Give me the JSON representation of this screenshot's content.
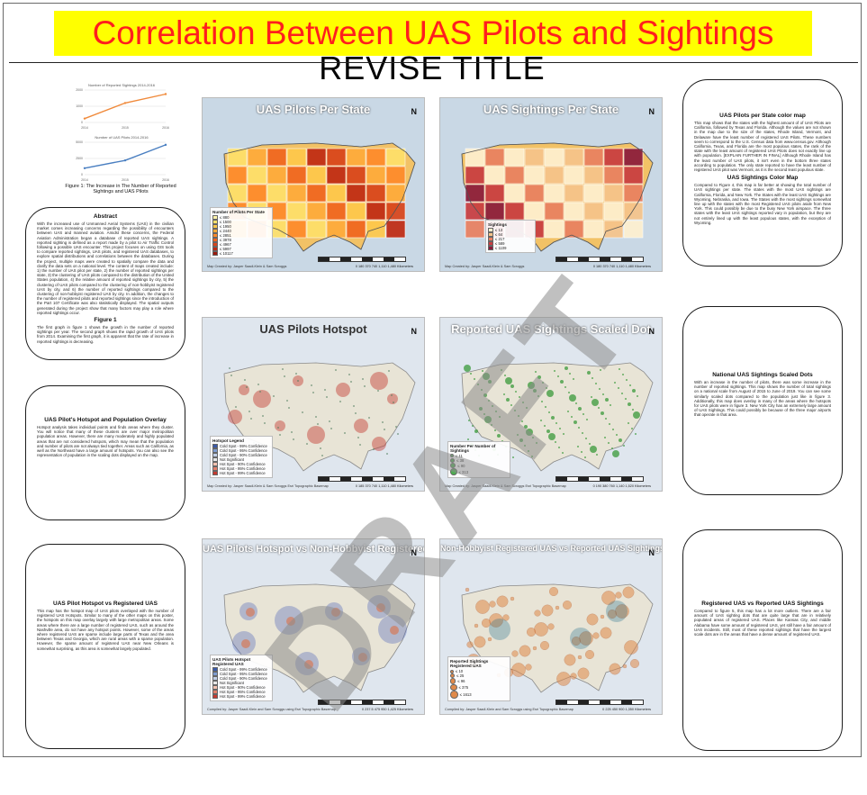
{
  "poster": {
    "title": "Correlation Between UAS Pilots and Sightings",
    "subtitle": "REVISE TITLE",
    "watermark": "DRAFT",
    "colors": {
      "title_bg": "#ffff00",
      "title_text": "#ff1e1e",
      "watermark": "#8c8c8c"
    }
  },
  "figure1": {
    "chart1_title": "Number of Reported Sightings 2014-2016",
    "chart2_title": "Number of UAS Pilots 2014-2016",
    "caption": "Figure 1: The Increase in The Number of Reported Sightings and UAS Pilots",
    "chart_data": [
      {
        "type": "line",
        "title": "Number of Reported Sightings 2014-2016",
        "categories": [
          "2014",
          "2015",
          "2016"
        ],
        "values": [
          240,
          1200,
          1750
        ],
        "ylim": [
          0,
          2000
        ],
        "color": "#f08a3b"
      },
      {
        "type": "line",
        "title": "Number of UAS Pilots 2014-2016",
        "categories": [
          "2014",
          "2015",
          "2016"
        ],
        "values": [
          1000,
          2200,
          4600
        ],
        "ylim": [
          0,
          5000
        ],
        "color": "#4a7fc1"
      }
    ]
  },
  "panels": {
    "abstract": {
      "heading": "Abstract",
      "body": "With the increased use of Unmanned Aerial Systems (UAS) in the civilian market comes increasing concerns regarding the possibility of encounters between UAS and manned aviation. Amidst these concerns, the Federal Aviation Administration began a database of reported UAS sightings. A reported sighting is defined as a report made by a pilot to Air Traffic Control following a possible UAS encounter. This project focuses on using GIS tools to compare reported sightings, UAS pilots, and registered UAS databases, to explore spatial distributions and correlations between the databases. During the project, multiple maps were created to spatially compare the data and clarify the data sets on a national level. The content of maps created include: 1) the number of UAS pilot per state, 2) the number of reported sightings per state, 3) the clustering of UAS pilots compared to the distribution of the United States population, 4) the relative amount of reported sightings by city, 5) the clustering of UAS pilots compared to the clustering of non-hobbyist registered UAS by city, and 6) the number of reported sightings compared to the clustering of non-hobbyist registered UAS by city. In addition, the changes to the number of registered pilots and reported sightings since the introduction of the Part 107 Certificate was also statistically displayed. The spatial outputs generated during the project show that many factors may play a role where reported sightings occur.",
      "sub_heading": "Figure 1",
      "sub_body": "The first graph in figure 1 shows the growth in the number of reported sightings per year. The second graph shows the rapid growth of UAS pilots from 2014. Examining the first graph, it is apparent that the rate of increase in reported sightings is decreasing."
    },
    "hotspot_overlay": {
      "heading": "UAS Pilot's Hotspot and Population Overlay",
      "body": "Hotspot analysis takes individual points and finds areas where they cluster. You will notice that many of these clusters are over major metropolitan population areas. However, there are many moderately and highly populated areas that are not considered hotspots, which may mean that the population and number of pilots are not always tied together. Areas such as California, as well as the Northeast have a large amount of hotspots. You can also see the representation of population in the scaling dots displayed on the map."
    },
    "pilot_vs_registered": {
      "heading": "UAS Pilot Hotspot vs Registered UAS",
      "body": "This map has the hotspot map of UAS pilots overlayed with the number of registered UAS Hotspots. Similar to many of the other maps on this poster, the hotspots on this map overlay largely with large metropolitan areas. Some areas where there are a large number of registered UAS, such as around the Nashville area, do not have any hotspot points. However, some of the areas where registered UAS are sparse include large parts of Texas and the area between Texas and Georgia, which are rural areas with a sparse population. However, the sparse amount of registered UAS near New Orleans is somewhat surprising, as this area is somewhat largely populated."
    },
    "pilots_color_map": {
      "heading": "UAS Pilots per State color map",
      "body": "This map shows that the states with the highest amount of of UAS Pilots are California, followed by Texas and Florida. Although the values are not shown in the map due to the size of the states, Rhode Island, Vermont, and Delaware have the least number of registered UAS Pilots. These numbers seem to correspond to the U.S. Census data from www.census.gov. Although California, Texas, and Florida are the most populous states, the rank of the state with the least amount of registered UAS Pilots does not exactly line up with population. [EXPLAIN FURTHER IN FINAL] Although Rhode Island has the least number of UAS pilots, it isn't even in the bottom three states according to population. The only state reported to have the least number of registered UAS pilot was Vermont, as it is the second least populous state.",
      "sub_heading": "UAS Sightings Color Map",
      "sub_body": "Compared to Figure 4, this map is far better at showing the total number of UAS sightings per state. The states with the most UAS sightings are California, Florida, and New York. The States with the least UAS Sightings are Wyoming, Nebraska, and Iowa. The States with the most sightings somewhat line up with the states with the most Registered UAS pilots aside from New York. This could possibly be due to the busy New York airspace. The three states with the least UAS sightings reported vary in population, but they are not entirely lined up with the least populous states, with the exception of Wyoming."
    },
    "scaled_dots": {
      "heading": "National UAS Sightings Scaled Dots",
      "body": "With an increase in the number of pilots, there was some increase in the number of reported sightings. This map shows the number of total sightings on a national scale from August of 2015 to June of 2019. You can see some similarly scaled dots compared to the population just like in figure 3. Additionally, this map does overlay in many of the areas where the hotspots for UAS pilots were in figure 3. New York City has an extremely large amount of UAS Sightings. This could possibly be because of the three major airports that operate in that area."
    },
    "registered_vs_reported": {
      "heading": "Registered UAS vs Reported UAS Sightings",
      "body": "Compared to figure 5, this map has a lot more outliers. There are a fair amount of UAS sighting dots that are quite large that are in relatively populated areas of registered UAS. Places like Kansas City, and middle Alabama have some amount of registered UAS, yet still have a fair amount of UAS incidents. Still, most of these reported sightings that have the largest scale dots are in the areas that have a dense amount of registered UAS."
    }
  },
  "maps": [
    {
      "title": "UAS Pilots Per State",
      "legend_title": "Number of Pilots Per State",
      "legend_items": [
        "≤ 880",
        "≤ 1500",
        "≤ 1950",
        "≤ 2440",
        "≤ 2851",
        "≤ 3978",
        "≤ 4967",
        "≤ 5997",
        "≤ 10117"
      ],
      "credit": "Map Created by: Jasper Saadl-Klein & Sam Scroggs",
      "north": "N",
      "scale_text": "0  180 370   740   1,110   1,480 Kilometers"
    },
    {
      "title": "UAS Sightings Per State",
      "legend_title": "Sightings",
      "legend_items": [
        "≤ 13",
        "≤ 64",
        "≤ 217",
        "≤ 589",
        "≤ 1109"
      ],
      "credit": "Map Created by: Jasper Saadl-Klein & Sam Scroggs",
      "north": "N",
      "scale_text": "0  180 370   740   1,110   1,480 Kilometers"
    },
    {
      "title": "UAS Pilots Hotspot",
      "legend_title": "Hotspot Legend",
      "legend_items": [
        "Cold Spot - 99% Confidence",
        "Cold Spot - 95% Confidence",
        "Cold Spot - 90% Confidence",
        "Not Significant",
        "Hot Spot - 90% Confidence",
        "Hot Spot - 95% Confidence",
        "Hot Spot - 99% Confidence"
      ],
      "credit": "Map Created by: Jasper Saadl-Klein & Sam Scroggs     Esri Topographic Basemap",
      "north": "N",
      "scale_text": "0  185 370   740   1,110   1,480 Kilometers"
    },
    {
      "title": "Reported UAS Sightings Scaled Dot",
      "legend_title": "Number Per Number of Sightings",
      "legend_items": [
        "≤ 11",
        "≤ 38",
        "≤ 90",
        "≤ 313"
      ],
      "credit": "Map Created by: Jasper Saadl-Klein & Sam Scroggs     Esri Topographic Basemap",
      "north": "N",
      "scale_text": "0  190 380   760   1,140   1,520 Kilometers"
    },
    {
      "title": "UAS Pilots Hotspot vs Non-Hobbyist Registered UAS",
      "legend_title": "UAS Pilots Hotspot     Registered UAS",
      "legend_items": [
        "Cold Spot - 99% Confidence",
        "Cold Spot - 95% Confidence",
        "Cold Spot - 90% Confidence",
        "Not Significant",
        "Hot Spot - 90% Confidence",
        "Hot Spot - 95% Confidence",
        "Hot Spot - 99% Confidence"
      ],
      "credit": "Compiled by: Jasper Saadl-Klein and Sam Scroggs using Esri Topographic Basemap",
      "north": "N",
      "scale_text": "0  237.5  475   950   1,425 Kilometers"
    },
    {
      "title": "Non-Hobbyist Registered UAS vs Reported UAS Sightings",
      "legend_title": "Reported Sightings     Registered UAS",
      "legend_items": [
        "≤ 10",
        "≤ 25",
        "≤ 96",
        "≤ 375",
        "≤ 1613"
      ],
      "credit": "Compiled by: Jasper Saadl-Klein and Sam Scroggs using Esri Topographic Basemap",
      "north": "N",
      "scale_text": "0  225  450   900   1,350 Kilometers"
    }
  ]
}
